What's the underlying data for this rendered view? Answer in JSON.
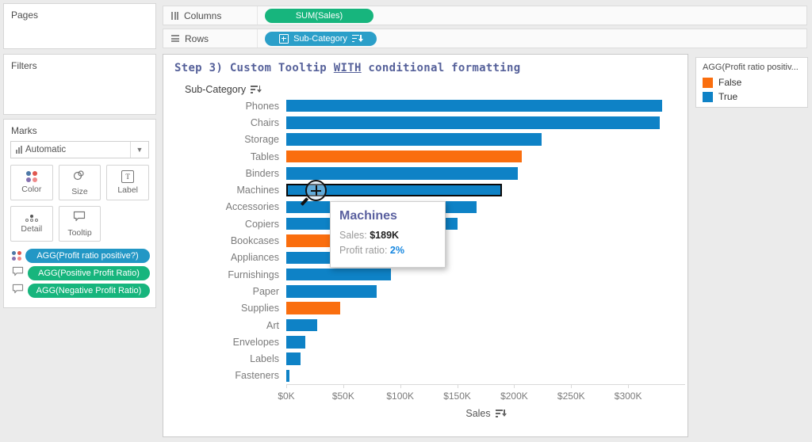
{
  "left_panel": {
    "pages_label": "Pages",
    "filters_label": "Filters",
    "marks": {
      "label": "Marks",
      "mark_type": "Automatic",
      "cards": {
        "color": "Color",
        "size": "Size",
        "label": "Label",
        "detail": "Detail",
        "tooltip": "Tooltip"
      },
      "pills": [
        {
          "icon": "color-icon",
          "label": "AGG(Profit ratio positive?)",
          "style": "blue"
        },
        {
          "icon": "tooltip-icon",
          "label": "AGG(Positive Profit Ratio)",
          "style": "green"
        },
        {
          "icon": "tooltip-icon",
          "label": "AGG(Negative Profit Ratio)",
          "style": "green"
        }
      ]
    }
  },
  "shelves": {
    "columns_label": "Columns",
    "rows_label": "Rows",
    "columns_pill": "SUM(Sales)",
    "rows_pill": "Sub-Category"
  },
  "sheet": {
    "title": {
      "pre": "Step 3) Custom Tooltip ",
      "underlined": "WITH",
      "post": " conditional formatting"
    },
    "row_header": "Sub-Category"
  },
  "tooltip": {
    "title": "Machines",
    "sales_label": "Sales:",
    "sales_value": "$189K",
    "ratio_label": "Profit ratio:",
    "ratio_value": "2%"
  },
  "legend": {
    "title": "AGG(Profit ratio positiv...",
    "items": [
      {
        "label": "False",
        "color": "#fa6e0e"
      },
      {
        "label": "True",
        "color": "#0e82c6"
      }
    ]
  },
  "chart_data": {
    "type": "bar",
    "orientation": "horizontal",
    "title": "Step 3) Custom Tooltip WITH conditional formatting",
    "categories": [
      "Phones",
      "Chairs",
      "Storage",
      "Tables",
      "Binders",
      "Machines",
      "Accessories",
      "Copiers",
      "Bookcases",
      "Appliances",
      "Furnishings",
      "Paper",
      "Supplies",
      "Art",
      "Envelopes",
      "Labels",
      "Fasteners"
    ],
    "values": [
      330000,
      328000,
      224000,
      207000,
      203000,
      189000,
      167000,
      150000,
      115000,
      108000,
      92000,
      79000,
      47000,
      27000,
      16500,
      12500,
      3000
    ],
    "profit_ratio_positive": [
      true,
      true,
      true,
      false,
      true,
      true,
      true,
      true,
      false,
      true,
      true,
      true,
      false,
      true,
      true,
      true,
      true
    ],
    "colors": {
      "true": "#0e82c6",
      "false": "#fa6e0e"
    },
    "x_ticks": [
      "$0K",
      "$50K",
      "$100K",
      "$150K",
      "$200K",
      "$250K",
      "$300K"
    ],
    "x_tick_step": 50000,
    "xlim": [
      0,
      350000
    ],
    "xlabel": "Sales",
    "ylabel": "Sub-Category",
    "legend_title": "AGG(Profit ratio positiv...",
    "legend_entries": [
      "False",
      "True"
    ],
    "highlighted_category": "Machines",
    "grid": false
  }
}
